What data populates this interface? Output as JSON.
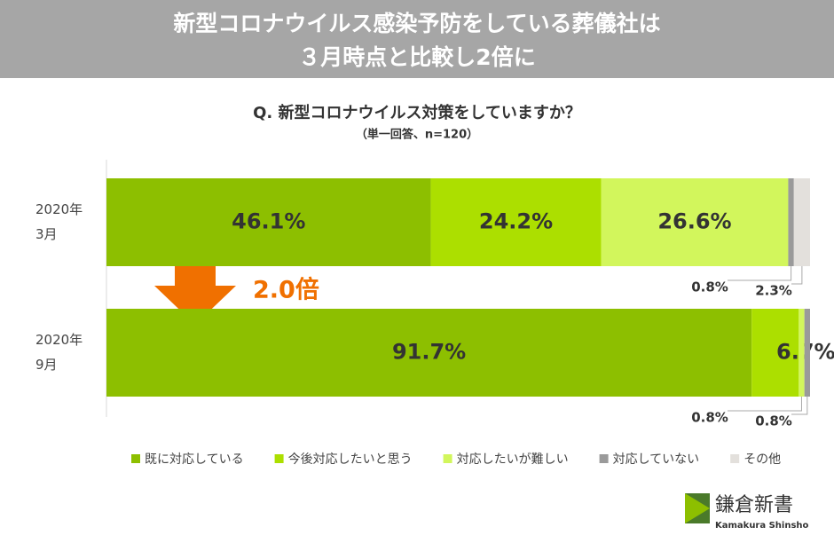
{
  "chart_data": {
    "type": "stacked-bar-horizontal",
    "title": [
      "新型コロナウイルス感染予防をしている葬儀社は",
      "３月時点と比較し2倍に"
    ],
    "subtitle": "Q. 新型コロナウイルス対策をしていますか？",
    "note": "（単一回答、n=120）",
    "annotation": "2.0倍",
    "categories": [
      [
        "2020年",
        "3月"
      ],
      [
        "2020年",
        "9月"
      ]
    ],
    "xlim": [
      0,
      100
    ],
    "series": [
      {
        "name": "既に対応している",
        "color": "#8dbf00",
        "values": [
          46.1,
          91.7
        ],
        "value_labels": [
          "46.1%",
          "91.7%"
        ]
      },
      {
        "name": "今後対応したいと思う",
        "color": "#acdf00",
        "values": [
          24.2,
          6.7
        ],
        "value_labels": [
          "24.2%",
          "6.7%"
        ]
      },
      {
        "name": "対応したいが難しい",
        "color": "#d2f65c",
        "values": [
          26.6,
          0.8
        ],
        "value_labels": [
          "26.6%",
          "0.8%"
        ]
      },
      {
        "name": "対応していない",
        "color": "#9a9a9a",
        "values": [
          0.8,
          0.8
        ],
        "value_labels": [
          "0.8%",
          "0.8%"
        ]
      },
      {
        "name": "その他",
        "color": "#e3e0dc",
        "values": [
          2.3,
          0
        ],
        "value_labels": [
          "2.3%",
          null
        ]
      }
    ],
    "legend": "bottom"
  },
  "logo": {
    "name": "鎌倉新書",
    "romaji": "Kamakura Shinsho"
  }
}
